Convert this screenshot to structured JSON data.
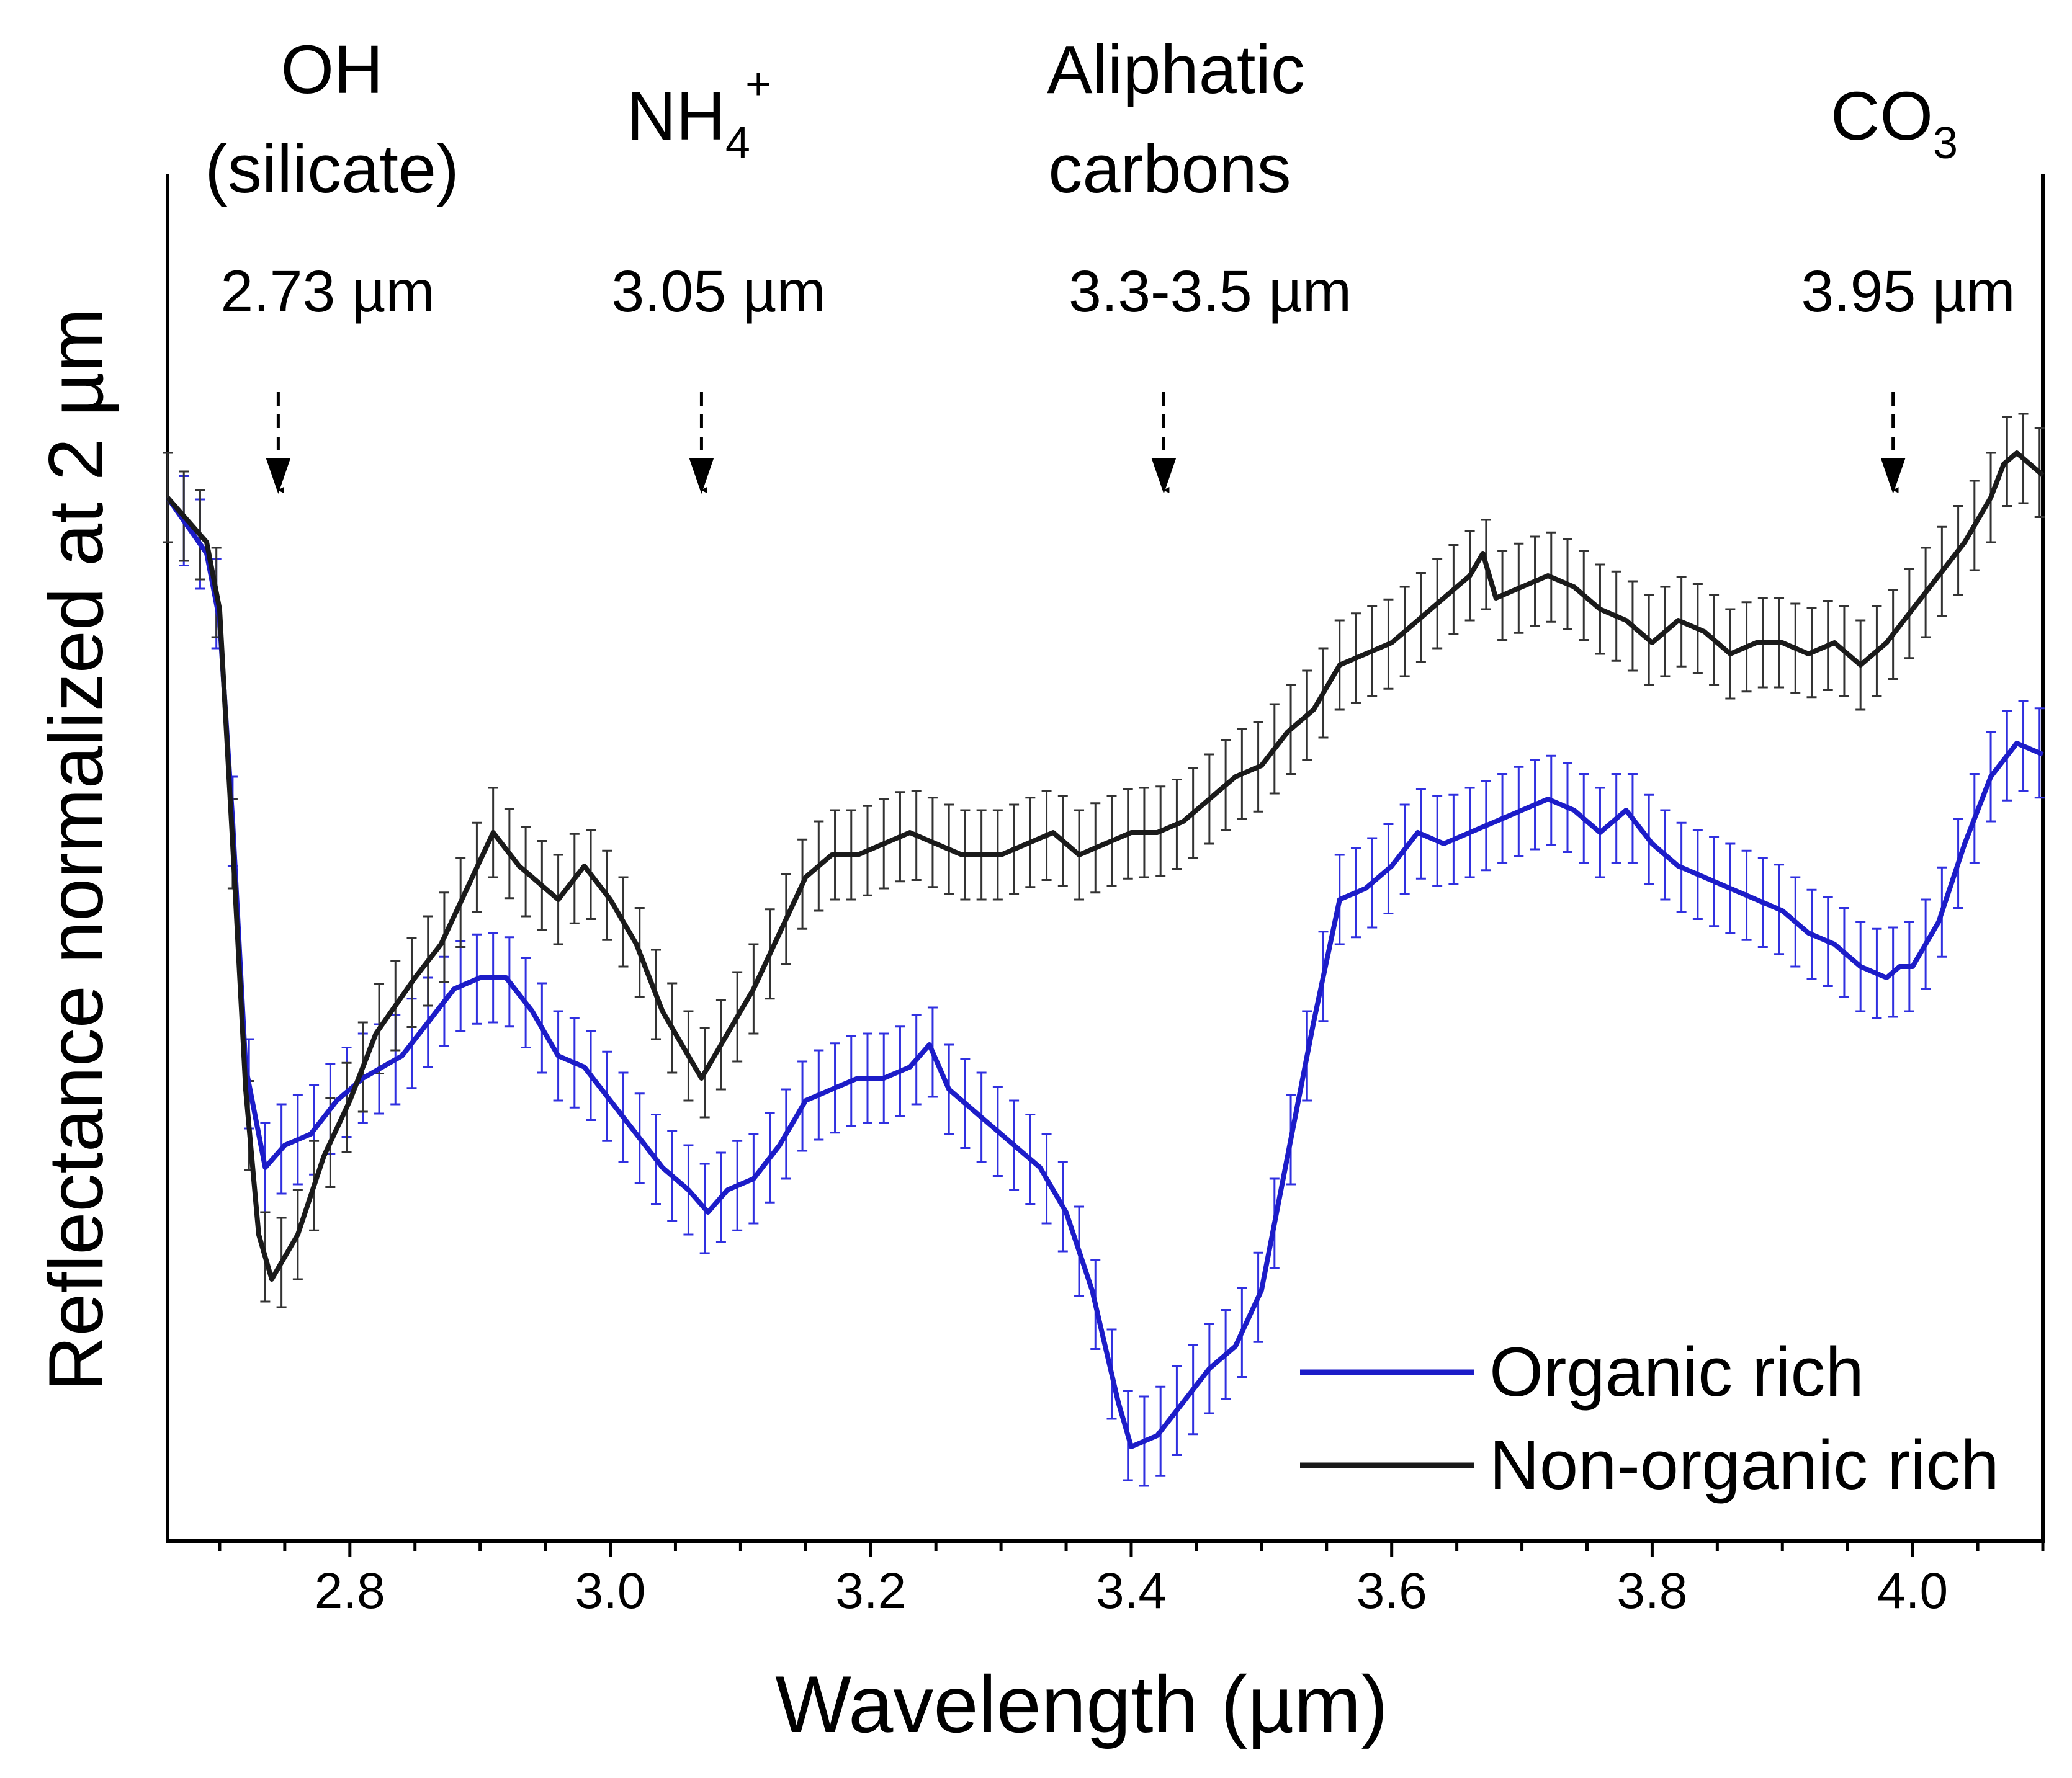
{
  "chart_data": {
    "type": "line",
    "title": "",
    "xlabel": "Wavelength (µm)",
    "ylabel": "Reflectance normalized at 2 µm",
    "xlim": [
      2.66,
      4.1
    ],
    "ylim": [
      0,
      1
    ],
    "y_ticks_shown": false,
    "x_ticks": [
      "2.8",
      "3.0",
      "3.2",
      "3.4",
      "3.6",
      "3.8",
      "4.0"
    ],
    "x_tick_values": [
      2.8,
      3.0,
      3.2,
      3.4,
      3.6,
      3.8,
      4.0
    ],
    "grid": false,
    "legend_position": "bottom-right",
    "error_bars": true,
    "annotations": [
      {
        "label_lines": [
          "OH",
          "(silicate)"
        ],
        "wavelength_label": "2.73 µm",
        "x": 2.745
      },
      {
        "label_lines": [
          "NH",
          "4",
          "+"
        ],
        "label_kind": "ammonium",
        "wavelength_label": "3.05 µm",
        "x": 3.07
      },
      {
        "label_lines": [
          "Aliphatic",
          "carbons"
        ],
        "wavelength_label": "3.3-3.5 µm",
        "x": 3.425
      },
      {
        "label_lines": [
          "CO",
          "3"
        ],
        "label_kind": "carbonate",
        "wavelength_label": "3.95 µm",
        "x": 3.985
      }
    ],
    "series": [
      {
        "name": "Organic rich",
        "color": "#1c1cc8",
        "error_color": "#3030e0",
        "x": [
          2.66,
          2.69,
          2.7,
          2.71,
          2.72,
          2.735,
          2.75,
          2.77,
          2.79,
          2.81,
          2.84,
          2.86,
          2.88,
          2.9,
          2.92,
          2.94,
          2.96,
          2.98,
          3.0,
          3.02,
          3.04,
          3.06,
          3.075,
          3.09,
          3.11,
          3.13,
          3.15,
          3.17,
          3.19,
          3.21,
          3.23,
          3.245,
          3.26,
          3.29,
          3.31,
          3.33,
          3.35,
          3.37,
          3.39,
          3.4,
          3.42,
          3.44,
          3.46,
          3.48,
          3.5,
          3.52,
          3.54,
          3.56,
          3.58,
          3.6,
          3.62,
          3.64,
          3.66,
          3.68,
          3.7,
          3.72,
          3.74,
          3.76,
          3.78,
          3.8,
          3.82,
          3.84,
          3.86,
          3.88,
          3.9,
          3.92,
          3.94,
          3.96,
          3.98,
          3.99,
          4.0,
          4.02,
          4.04,
          4.06,
          4.08,
          4.1
        ],
        "y": [
          0.91,
          0.86,
          0.8,
          0.62,
          0.4,
          0.31,
          0.33,
          0.34,
          0.37,
          0.39,
          0.41,
          0.44,
          0.47,
          0.48,
          0.48,
          0.45,
          0.41,
          0.4,
          0.37,
          0.34,
          0.31,
          0.29,
          0.27,
          0.29,
          0.3,
          0.33,
          0.37,
          0.38,
          0.39,
          0.39,
          0.4,
          0.42,
          0.38,
          0.35,
          0.33,
          0.31,
          0.27,
          0.2,
          0.1,
          0.06,
          0.07,
          0.1,
          0.13,
          0.15,
          0.2,
          0.32,
          0.44,
          0.55,
          0.56,
          0.58,
          0.61,
          0.6,
          0.61,
          0.62,
          0.63,
          0.64,
          0.63,
          0.61,
          0.63,
          0.6,
          0.58,
          0.57,
          0.56,
          0.55,
          0.54,
          0.52,
          0.51,
          0.49,
          0.48,
          0.49,
          0.49,
          0.53,
          0.6,
          0.66,
          0.69,
          0.68
        ],
        "err": 0.04
      },
      {
        "name": "Non-organic rich",
        "color": "#1a1a1a",
        "error_color": "#333333",
        "x": [
          2.66,
          2.69,
          2.7,
          2.71,
          2.72,
          2.73,
          2.74,
          2.76,
          2.78,
          2.8,
          2.82,
          2.85,
          2.87,
          2.89,
          2.91,
          2.93,
          2.96,
          2.98,
          3.0,
          3.02,
          3.04,
          3.06,
          3.07,
          3.09,
          3.11,
          3.13,
          3.15,
          3.17,
          3.19,
          3.21,
          3.23,
          3.25,
          3.27,
          3.3,
          3.32,
          3.34,
          3.36,
          3.38,
          3.4,
          3.42,
          3.44,
          3.46,
          3.48,
          3.5,
          3.52,
          3.54,
          3.56,
          3.58,
          3.6,
          3.62,
          3.64,
          3.66,
          3.67,
          3.68,
          3.7,
          3.72,
          3.74,
          3.76,
          3.78,
          3.8,
          3.82,
          3.84,
          3.86,
          3.88,
          3.9,
          3.92,
          3.94,
          3.96,
          3.98,
          4.0,
          4.02,
          4.04,
          4.06,
          4.07,
          4.08,
          4.1
        ],
        "y": [
          0.91,
          0.87,
          0.81,
          0.6,
          0.38,
          0.25,
          0.21,
          0.25,
          0.32,
          0.37,
          0.43,
          0.48,
          0.51,
          0.56,
          0.61,
          0.58,
          0.55,
          0.58,
          0.55,
          0.51,
          0.45,
          0.41,
          0.39,
          0.43,
          0.47,
          0.52,
          0.57,
          0.59,
          0.59,
          0.6,
          0.61,
          0.6,
          0.59,
          0.59,
          0.6,
          0.61,
          0.59,
          0.6,
          0.61,
          0.61,
          0.62,
          0.64,
          0.66,
          0.67,
          0.7,
          0.72,
          0.76,
          0.77,
          0.78,
          0.8,
          0.82,
          0.84,
          0.86,
          0.82,
          0.83,
          0.84,
          0.83,
          0.81,
          0.8,
          0.78,
          0.8,
          0.79,
          0.77,
          0.78,
          0.78,
          0.77,
          0.78,
          0.76,
          0.78,
          0.81,
          0.84,
          0.87,
          0.91,
          0.94,
          0.95,
          0.93
        ],
        "err": 0.04
      }
    ]
  }
}
